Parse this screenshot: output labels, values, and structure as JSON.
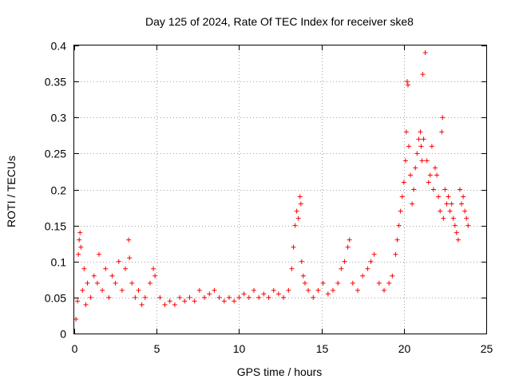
{
  "chart_data": {
    "type": "scatter",
    "title": "Day 125 of 2024, Rate Of TEC Index for receiver ske8",
    "xlabel": "GPS time / hours",
    "ylabel": "ROTI / TECUs",
    "xlim": [
      0,
      25
    ],
    "ylim": [
      0,
      0.4
    ],
    "xticks": [
      0,
      5,
      10,
      15,
      20,
      25
    ],
    "xtick_labels": [
      "0",
      "5",
      "10",
      "15",
      "20",
      "25"
    ],
    "yticks": [
      0,
      0.05,
      0.1,
      0.15,
      0.2,
      0.25,
      0.3,
      0.35,
      0.4
    ],
    "ytick_labels": [
      "0",
      "0.05",
      "0.1",
      "0.15",
      "0.2",
      "0.25",
      "0.3",
      "0.35",
      "0.4"
    ],
    "grid": true,
    "marker": "+",
    "color": "#ff0000",
    "series": [
      {
        "name": "ROTI",
        "points": [
          [
            0.1,
            0.02
          ],
          [
            0.2,
            0.045
          ],
          [
            0.25,
            0.11
          ],
          [
            0.3,
            0.13
          ],
          [
            0.35,
            0.14
          ],
          [
            0.4,
            0.12
          ],
          [
            0.5,
            0.06
          ],
          [
            0.6,
            0.09
          ],
          [
            0.7,
            0.04
          ],
          [
            0.8,
            0.07
          ],
          [
            1.0,
            0.05
          ],
          [
            1.2,
            0.08
          ],
          [
            1.4,
            0.07
          ],
          [
            1.5,
            0.11
          ],
          [
            1.7,
            0.06
          ],
          [
            1.9,
            0.09
          ],
          [
            2.1,
            0.05
          ],
          [
            2.3,
            0.08
          ],
          [
            2.5,
            0.07
          ],
          [
            2.7,
            0.1
          ],
          [
            2.9,
            0.06
          ],
          [
            3.1,
            0.09
          ],
          [
            3.3,
            0.13
          ],
          [
            3.35,
            0.105
          ],
          [
            3.5,
            0.07
          ],
          [
            3.7,
            0.05
          ],
          [
            3.9,
            0.06
          ],
          [
            4.1,
            0.04
          ],
          [
            4.3,
            0.05
          ],
          [
            4.6,
            0.07
          ],
          [
            4.8,
            0.09
          ],
          [
            4.9,
            0.08
          ],
          [
            5.2,
            0.05
          ],
          [
            5.5,
            0.04
          ],
          [
            5.8,
            0.045
          ],
          [
            6.1,
            0.04
          ],
          [
            6.4,
            0.05
          ],
          [
            6.7,
            0.045
          ],
          [
            7.0,
            0.05
          ],
          [
            7.3,
            0.045
          ],
          [
            7.6,
            0.06
          ],
          [
            7.9,
            0.05
          ],
          [
            8.2,
            0.055
          ],
          [
            8.5,
            0.06
          ],
          [
            8.8,
            0.05
          ],
          [
            9.1,
            0.045
          ],
          [
            9.4,
            0.05
          ],
          [
            9.7,
            0.045
          ],
          [
            10.0,
            0.05
          ],
          [
            10.3,
            0.055
          ],
          [
            10.6,
            0.05
          ],
          [
            10.9,
            0.06
          ],
          [
            11.2,
            0.05
          ],
          [
            11.5,
            0.055
          ],
          [
            11.8,
            0.05
          ],
          [
            12.1,
            0.06
          ],
          [
            12.4,
            0.055
          ],
          [
            12.7,
            0.05
          ],
          [
            13.0,
            0.06
          ],
          [
            13.2,
            0.09
          ],
          [
            13.3,
            0.12
          ],
          [
            13.4,
            0.15
          ],
          [
            13.5,
            0.17
          ],
          [
            13.6,
            0.16
          ],
          [
            13.7,
            0.19
          ],
          [
            13.75,
            0.18
          ],
          [
            13.8,
            0.1
          ],
          [
            13.9,
            0.08
          ],
          [
            14.0,
            0.07
          ],
          [
            14.2,
            0.06
          ],
          [
            14.5,
            0.05
          ],
          [
            14.8,
            0.06
          ],
          [
            15.1,
            0.07
          ],
          [
            15.4,
            0.055
          ],
          [
            15.7,
            0.06
          ],
          [
            16.0,
            0.07
          ],
          [
            16.2,
            0.09
          ],
          [
            16.4,
            0.1
          ],
          [
            16.6,
            0.12
          ],
          [
            16.7,
            0.13
          ],
          [
            16.9,
            0.07
          ],
          [
            17.2,
            0.06
          ],
          [
            17.5,
            0.08
          ],
          [
            17.8,
            0.09
          ],
          [
            18.0,
            0.1
          ],
          [
            18.2,
            0.11
          ],
          [
            18.5,
            0.07
          ],
          [
            18.8,
            0.06
          ],
          [
            19.1,
            0.07
          ],
          [
            19.3,
            0.08
          ],
          [
            19.5,
            0.11
          ],
          [
            19.6,
            0.13
          ],
          [
            19.7,
            0.15
          ],
          [
            19.8,
            0.17
          ],
          [
            19.9,
            0.19
          ],
          [
            20.0,
            0.21
          ],
          [
            20.1,
            0.24
          ],
          [
            20.15,
            0.28
          ],
          [
            20.2,
            0.35
          ],
          [
            20.25,
            0.345
          ],
          [
            20.3,
            0.26
          ],
          [
            20.4,
            0.22
          ],
          [
            20.5,
            0.18
          ],
          [
            20.6,
            0.2
          ],
          [
            20.7,
            0.23
          ],
          [
            20.8,
            0.25
          ],
          [
            20.9,
            0.27
          ],
          [
            21.0,
            0.28
          ],
          [
            21.05,
            0.26
          ],
          [
            21.1,
            0.24
          ],
          [
            21.15,
            0.36
          ],
          [
            21.2,
            0.27
          ],
          [
            21.3,
            0.39
          ],
          [
            21.4,
            0.24
          ],
          [
            21.5,
            0.21
          ],
          [
            21.6,
            0.22
          ],
          [
            21.7,
            0.26
          ],
          [
            21.8,
            0.2
          ],
          [
            21.9,
            0.23
          ],
          [
            22.0,
            0.22
          ],
          [
            22.1,
            0.19
          ],
          [
            22.2,
            0.17
          ],
          [
            22.3,
            0.28
          ],
          [
            22.35,
            0.3
          ],
          [
            22.4,
            0.16
          ],
          [
            22.5,
            0.2
          ],
          [
            22.6,
            0.18
          ],
          [
            22.7,
            0.19
          ],
          [
            22.8,
            0.17
          ],
          [
            22.9,
            0.18
          ],
          [
            23.0,
            0.16
          ],
          [
            23.1,
            0.15
          ],
          [
            23.2,
            0.14
          ],
          [
            23.3,
            0.13
          ],
          [
            23.4,
            0.2
          ],
          [
            23.5,
            0.18
          ],
          [
            23.6,
            0.19
          ],
          [
            23.7,
            0.17
          ],
          [
            23.8,
            0.16
          ],
          [
            23.9,
            0.15
          ]
        ]
      }
    ]
  }
}
